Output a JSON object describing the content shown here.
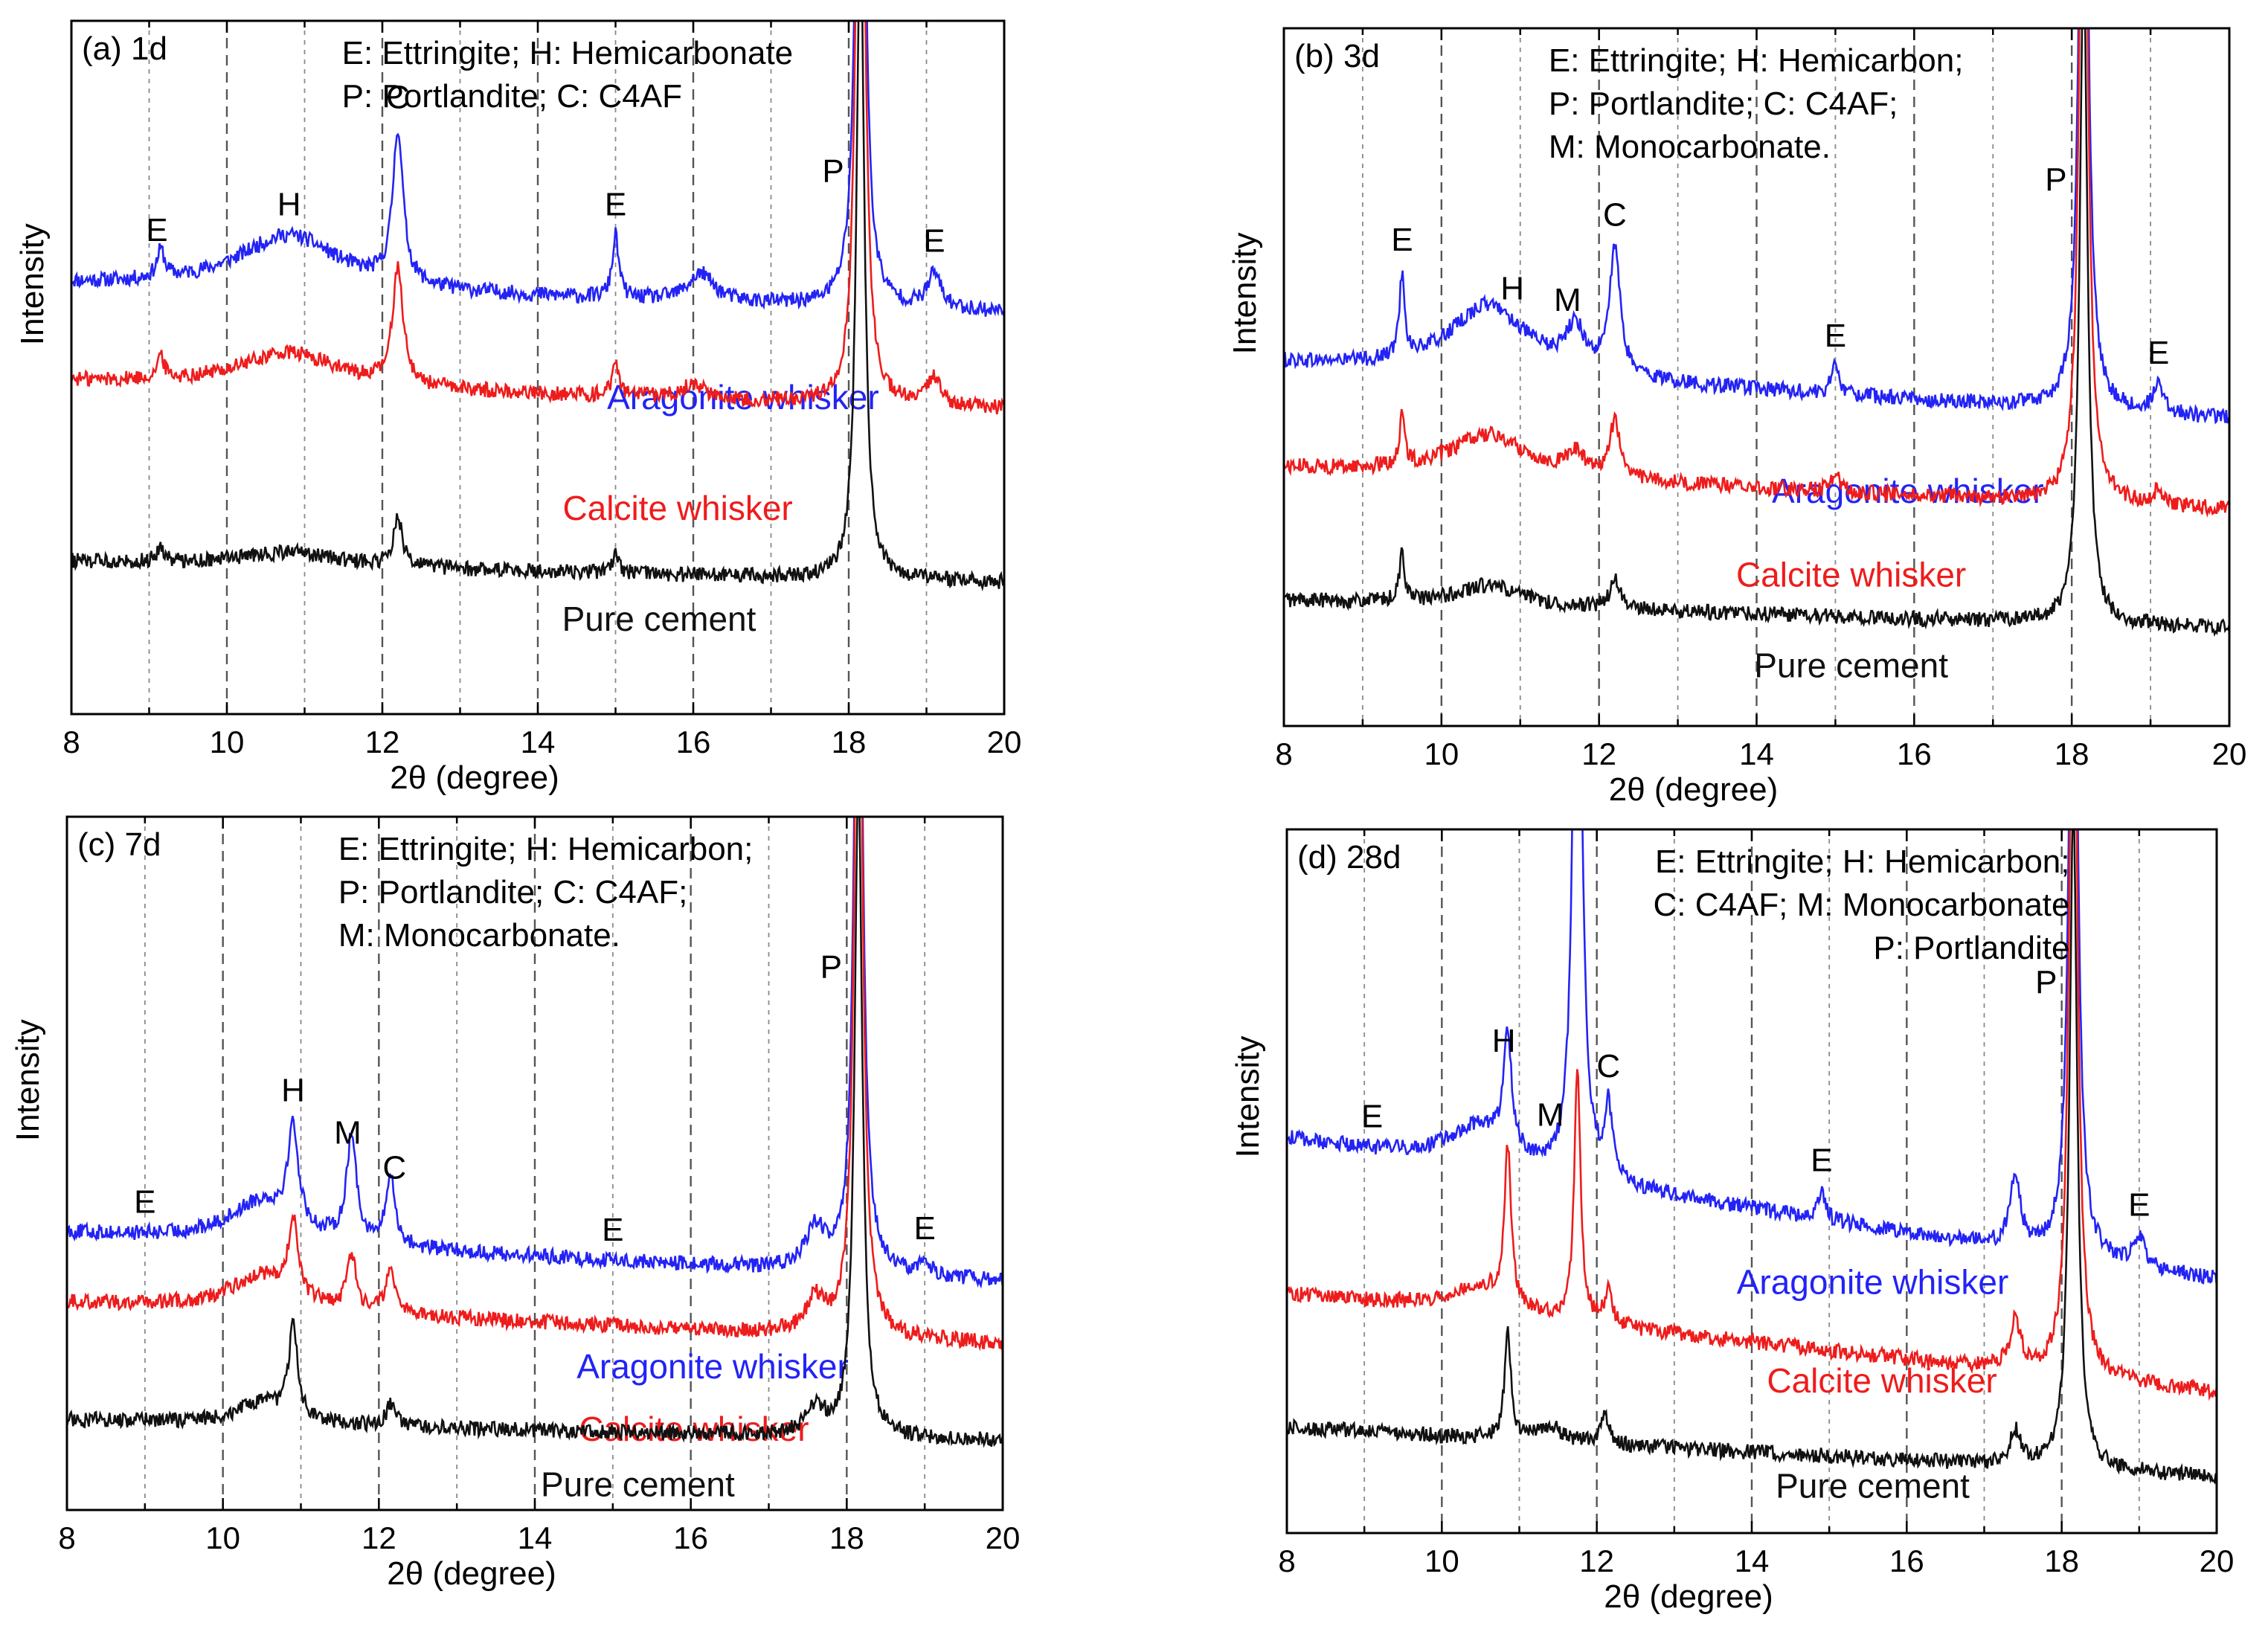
{
  "figure": {
    "xlabel": "2θ (degree)",
    "ylabel": "Intensity",
    "x_ticks": [
      "8",
      "10",
      "12",
      "14",
      "16",
      "18",
      "20"
    ],
    "colors": {
      "aragonite": "#2323f5",
      "calcite": "#ee1c1c",
      "pure": "#111111",
      "axis": "#000000",
      "grid": "#8a8a8a"
    }
  },
  "chart_data": [
    {
      "type": "line",
      "panel_label": "(a) 1d",
      "xlabel": "2θ (degree)",
      "ylabel": "Intensity",
      "xlim": [
        8,
        20
      ],
      "legend_lines": [
        "E: Ettringite; H: Hemicarbonate",
        "P: Portlandite;  C: C4AF"
      ],
      "peak_labels": [
        {
          "text": "E",
          "x": 9.1
        },
        {
          "text": "H",
          "x": 10.8
        },
        {
          "text": "C",
          "x": 12.2
        },
        {
          "text": "E",
          "x": 15.0
        },
        {
          "text": "P",
          "x": 17.8
        },
        {
          "text": "E",
          "x": 19.1
        }
      ],
      "series": [
        {
          "name": "Aragonite whisker",
          "base": [
            0.62,
            0.58
          ],
          "peaks": [
            [
              9.15,
              0.04,
              0.06
            ],
            [
              10.8,
              0.08,
              0.8
            ],
            [
              12.2,
              0.22,
              0.08
            ],
            [
              15.0,
              0.09,
              0.05
            ],
            [
              16.1,
              0.04,
              0.2
            ],
            [
              18.15,
              1.2,
              0.06
            ],
            [
              19.1,
              0.05,
              0.1
            ]
          ]
        },
        {
          "name": "Calcite whisker",
          "base": [
            0.48,
            0.44
          ],
          "peaks": [
            [
              9.15,
              0.03,
              0.06
            ],
            [
              10.8,
              0.05,
              0.8
            ],
            [
              12.2,
              0.17,
              0.08
            ],
            [
              15.0,
              0.05,
              0.05
            ],
            [
              16.0,
              0.02,
              0.2
            ],
            [
              18.15,
              1.2,
              0.06
            ],
            [
              19.1,
              0.04,
              0.1
            ]
          ]
        },
        {
          "name": "Pure cement",
          "base": [
            0.22,
            0.19
          ],
          "peaks": [
            [
              9.15,
              0.02,
              0.06
            ],
            [
              10.8,
              0.02,
              0.8
            ],
            [
              12.2,
              0.07,
              0.07
            ],
            [
              15.0,
              0.03,
              0.05
            ],
            [
              18.15,
              0.95,
              0.06
            ]
          ]
        }
      ]
    },
    {
      "type": "line",
      "panel_label": "(b) 3d",
      "xlabel": "2θ (degree)",
      "ylabel": "Intensity",
      "xlim": [
        8,
        20
      ],
      "legend_lines": [
        "E: Ettringite; H: Hemicarbon;",
        "P: Portlandite; C: C4AF;",
        "M: Monocarbonate."
      ],
      "peak_labels": [
        {
          "text": "E",
          "x": 9.5
        },
        {
          "text": "H",
          "x": 10.9
        },
        {
          "text": "M",
          "x": 11.6
        },
        {
          "text": "C",
          "x": 12.2
        },
        {
          "text": "E",
          "x": 15.0
        },
        {
          "text": "P",
          "x": 17.8
        },
        {
          "text": "E",
          "x": 19.1
        }
      ],
      "series": [
        {
          "name": "Aragonite whisker",
          "base": [
            0.52,
            0.44
          ],
          "peaks": [
            [
              9.5,
              0.12,
              0.04
            ],
            [
              10.6,
              0.1,
              0.6
            ],
            [
              11.7,
              0.06,
              0.15
            ],
            [
              12.2,
              0.18,
              0.08
            ],
            [
              15.0,
              0.04,
              0.06
            ],
            [
              18.15,
              1.2,
              0.06
            ],
            [
              19.1,
              0.04,
              0.08
            ]
          ]
        },
        {
          "name": "Calcite whisker",
          "base": [
            0.37,
            0.31
          ],
          "peaks": [
            [
              9.5,
              0.07,
              0.04
            ],
            [
              10.6,
              0.06,
              0.6
            ],
            [
              11.7,
              0.03,
              0.15
            ],
            [
              12.2,
              0.08,
              0.08
            ],
            [
              15.0,
              0.03,
              0.06
            ],
            [
              18.15,
              1.2,
              0.06
            ],
            [
              19.1,
              0.02,
              0.08
            ]
          ]
        },
        {
          "name": "Pure cement",
          "base": [
            0.18,
            0.14
          ],
          "peaks": [
            [
              9.5,
              0.07,
              0.04
            ],
            [
              10.6,
              0.03,
              0.5
            ],
            [
              12.2,
              0.04,
              0.08
            ],
            [
              18.15,
              0.95,
              0.06
            ]
          ]
        }
      ]
    },
    {
      "type": "line",
      "panel_label": "(c) 7d",
      "xlabel": "2θ (degree)",
      "ylabel": "Intensity",
      "xlim": [
        8,
        20
      ],
      "legend_lines": [
        "E: Ettringite; H: Hemicarbon;",
        "P: Portlandite; C: C4AF;",
        "M: Monocarbonate."
      ],
      "peak_labels": [
        {
          "text": "E",
          "x": 9.0
        },
        {
          "text": "H",
          "x": 10.9
        },
        {
          "text": "M",
          "x": 11.6
        },
        {
          "text": "C",
          "x": 12.2
        },
        {
          "text": "E",
          "x": 15.0
        },
        {
          "text": "P",
          "x": 17.8
        },
        {
          "text": "E",
          "x": 19.0
        }
      ],
      "series": [
        {
          "name": "Aragonite whisker",
          "base": [
            0.4,
            0.33
          ],
          "peaks": [
            [
              10.9,
              0.14,
              0.08
            ],
            [
              10.5,
              0.06,
              0.5
            ],
            [
              11.65,
              0.15,
              0.08
            ],
            [
              12.15,
              0.1,
              0.07
            ],
            [
              17.6,
              0.06,
              0.15
            ],
            [
              18.15,
              1.2,
              0.06
            ],
            [
              19.0,
              0.02,
              0.08
            ]
          ]
        },
        {
          "name": "Calcite whisker",
          "base": [
            0.3,
            0.24
          ],
          "peaks": [
            [
              10.9,
              0.11,
              0.07
            ],
            [
              10.5,
              0.05,
              0.5
            ],
            [
              11.65,
              0.08,
              0.07
            ],
            [
              12.15,
              0.07,
              0.07
            ],
            [
              17.6,
              0.05,
              0.15
            ],
            [
              18.15,
              1.2,
              0.06
            ]
          ]
        },
        {
          "name": "Pure cement",
          "base": [
            0.13,
            0.1
          ],
          "peaks": [
            [
              10.9,
              0.13,
              0.07
            ],
            [
              10.5,
              0.03,
              0.4
            ],
            [
              12.15,
              0.03,
              0.07
            ],
            [
              17.6,
              0.04,
              0.15
            ],
            [
              18.15,
              0.95,
              0.06
            ]
          ]
        }
      ]
    },
    {
      "type": "line",
      "panel_label": "(d) 28d",
      "xlabel": "2θ (degree)",
      "ylabel": "Intensity",
      "xlim": [
        8,
        20
      ],
      "legend_lines": [
        "E: Ettringite; H: Hemicarbon;",
        "C: C4AF; M: Monocarbonate",
        "P: Portlandite"
      ],
      "peak_labels": [
        {
          "text": "E",
          "x": 9.1
        },
        {
          "text": "H",
          "x": 10.8
        },
        {
          "text": "M",
          "x": 11.4
        },
        {
          "text": "C",
          "x": 12.15
        },
        {
          "text": "E",
          "x": 14.9
        },
        {
          "text": "P",
          "x": 17.8
        },
        {
          "text": "E",
          "x": 19.0
        }
      ],
      "series": [
        {
          "name": "Aragonite whisker",
          "base": [
            0.56,
            0.36
          ],
          "peaks": [
            [
              10.85,
              0.16,
              0.06
            ],
            [
              10.5,
              0.06,
              0.5
            ],
            [
              11.75,
              1.1,
              0.06
            ],
            [
              12.15,
              0.1,
              0.06
            ],
            [
              14.9,
              0.04,
              0.05
            ],
            [
              17.4,
              0.1,
              0.08
            ],
            [
              18.15,
              1.2,
              0.06
            ],
            [
              19.0,
              0.04,
              0.08
            ]
          ]
        },
        {
          "name": "Calcite whisker",
          "base": [
            0.34,
            0.2
          ],
          "peaks": [
            [
              10.85,
              0.22,
              0.05
            ],
            [
              10.5,
              0.04,
              0.5
            ],
            [
              11.75,
              0.35,
              0.05
            ],
            [
              12.15,
              0.05,
              0.06
            ],
            [
              17.4,
              0.07,
              0.08
            ],
            [
              18.15,
              1.2,
              0.06
            ]
          ]
        },
        {
          "name": "Pure cement",
          "base": [
            0.15,
            0.08
          ],
          "peaks": [
            [
              10.85,
              0.15,
              0.05
            ],
            [
              11.4,
              0.02,
              0.2
            ],
            [
              12.1,
              0.04,
              0.06
            ],
            [
              17.4,
              0.05,
              0.08
            ],
            [
              18.15,
              0.95,
              0.06
            ]
          ]
        }
      ]
    }
  ]
}
